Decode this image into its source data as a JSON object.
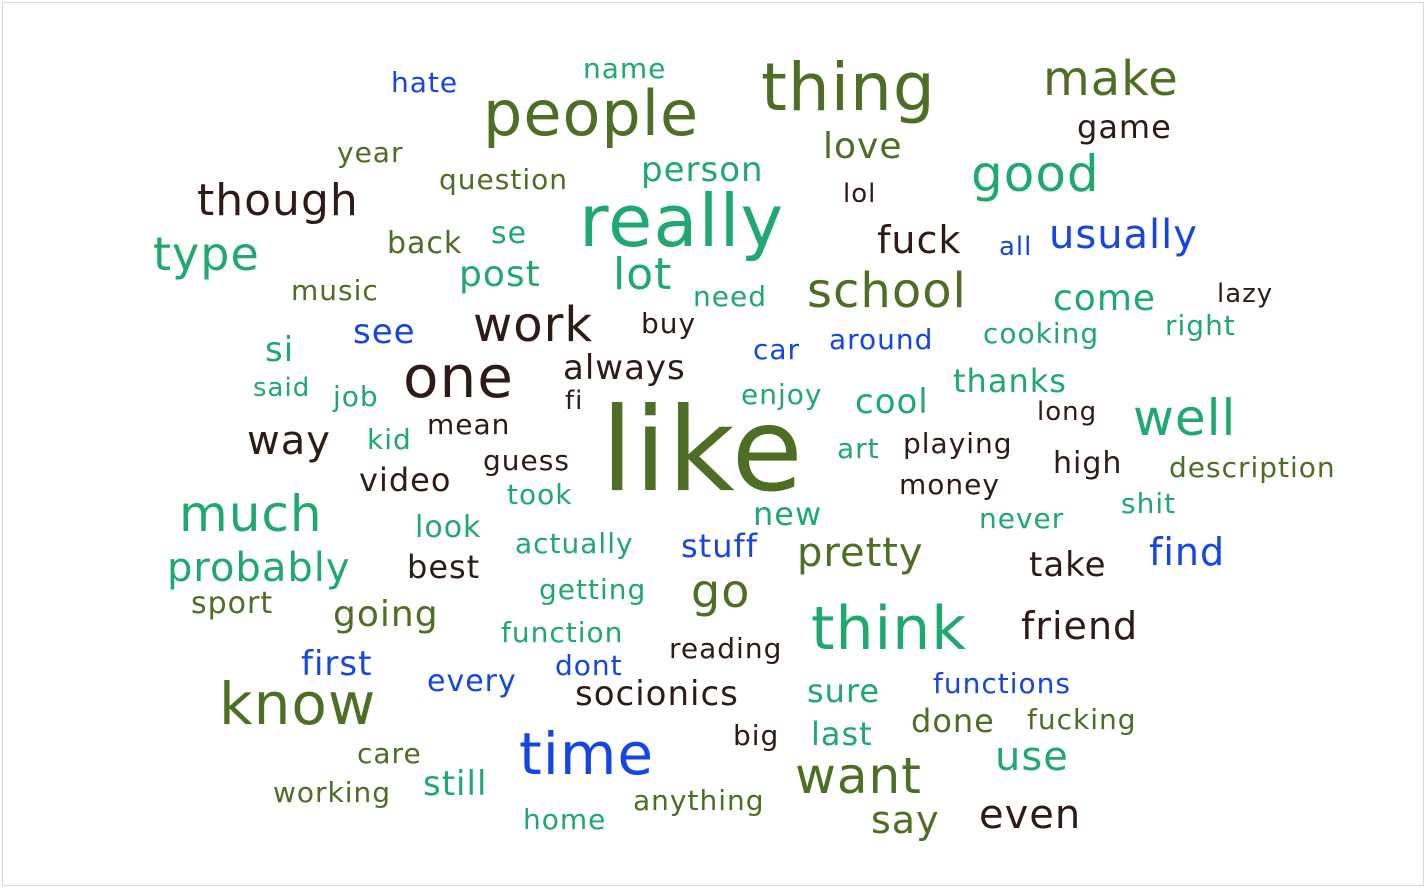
{
  "colors": {
    "olive": "#4d6e24",
    "green": "#1fa870",
    "blue": "#1545e6",
    "dark": "#2e1a17"
  },
  "words": [
    {
      "text": "like",
      "color": "olive"
    },
    {
      "text": "really",
      "color": "green"
    },
    {
      "text": "people",
      "color": "olive"
    },
    {
      "text": "thing",
      "color": "olive"
    },
    {
      "text": "think",
      "color": "green"
    },
    {
      "text": "one",
      "color": "dark"
    },
    {
      "text": "know",
      "color": "olive"
    },
    {
      "text": "time",
      "color": "blue"
    },
    {
      "text": "want",
      "color": "olive"
    },
    {
      "text": "make",
      "color": "olive"
    },
    {
      "text": "school",
      "color": "olive"
    },
    {
      "text": "good",
      "color": "green"
    },
    {
      "text": "work",
      "color": "dark"
    },
    {
      "text": "much",
      "color": "green"
    },
    {
      "text": "well",
      "color": "green"
    },
    {
      "text": "though",
      "color": "dark"
    },
    {
      "text": "type",
      "color": "green"
    },
    {
      "text": "go",
      "color": "olive"
    },
    {
      "text": "lot",
      "color": "green"
    },
    {
      "text": "way",
      "color": "dark"
    },
    {
      "text": "pretty",
      "color": "olive"
    },
    {
      "text": "probably",
      "color": "green"
    },
    {
      "text": "usually",
      "color": "blue"
    },
    {
      "text": "use",
      "color": "green"
    },
    {
      "text": "even",
      "color": "dark"
    },
    {
      "text": "friend",
      "color": "dark"
    },
    {
      "text": "fuck",
      "color": "dark"
    },
    {
      "text": "say",
      "color": "olive"
    },
    {
      "text": "socionics",
      "color": "dark"
    },
    {
      "text": "going",
      "color": "olive"
    },
    {
      "text": "find",
      "color": "blue"
    },
    {
      "text": "come",
      "color": "green"
    },
    {
      "text": "person",
      "color": "green"
    },
    {
      "text": "post",
      "color": "green"
    },
    {
      "text": "love",
      "color": "olive"
    },
    {
      "text": "always",
      "color": "dark"
    },
    {
      "text": "sure",
      "color": "green"
    },
    {
      "text": "done",
      "color": "olive"
    },
    {
      "text": "still",
      "color": "green"
    },
    {
      "text": "first",
      "color": "blue"
    },
    {
      "text": "last",
      "color": "green"
    },
    {
      "text": "video",
      "color": "dark"
    },
    {
      "text": "see",
      "color": "blue"
    },
    {
      "text": "best",
      "color": "dark"
    },
    {
      "text": "take",
      "color": "dark"
    },
    {
      "text": "game",
      "color": "dark"
    },
    {
      "text": "thanks",
      "color": "green"
    },
    {
      "text": "stuff",
      "color": "blue"
    },
    {
      "text": "new",
      "color": "green"
    },
    {
      "text": "cool",
      "color": "green"
    },
    {
      "text": "high",
      "color": "dark"
    },
    {
      "text": "si",
      "color": "green"
    },
    {
      "text": "sport",
      "color": "olive"
    },
    {
      "text": "back",
      "color": "olive"
    },
    {
      "text": "se",
      "color": "green"
    },
    {
      "text": "look",
      "color": "green"
    },
    {
      "text": "question",
      "color": "olive"
    },
    {
      "text": "year",
      "color": "olive"
    },
    {
      "text": "description",
      "color": "olive"
    },
    {
      "text": "money",
      "color": "dark"
    },
    {
      "text": "cooking",
      "color": "green"
    },
    {
      "text": "around",
      "color": "blue"
    },
    {
      "text": "functions",
      "color": "blue"
    },
    {
      "text": "fucking",
      "color": "olive"
    },
    {
      "text": "actually",
      "color": "green"
    },
    {
      "text": "every",
      "color": "blue"
    },
    {
      "text": "reading",
      "color": "dark"
    },
    {
      "text": "playing",
      "color": "dark"
    },
    {
      "text": "guess",
      "color": "dark"
    },
    {
      "text": "mean",
      "color": "dark"
    },
    {
      "text": "big",
      "color": "dark"
    },
    {
      "text": "never",
      "color": "green"
    },
    {
      "text": "function",
      "color": "green"
    },
    {
      "text": "getting",
      "color": "green"
    },
    {
      "text": "anything",
      "color": "olive"
    },
    {
      "text": "music",
      "color": "olive"
    },
    {
      "text": "need",
      "color": "green"
    },
    {
      "text": "enjoy",
      "color": "green"
    },
    {
      "text": "shit",
      "color": "green"
    },
    {
      "text": "right",
      "color": "green"
    },
    {
      "text": "working",
      "color": "olive"
    },
    {
      "text": "home",
      "color": "green"
    },
    {
      "text": "care",
      "color": "olive"
    },
    {
      "text": "hate",
      "color": "blue"
    },
    {
      "text": "name",
      "color": "green"
    },
    {
      "text": "lazy",
      "color": "dark"
    },
    {
      "text": "long",
      "color": "dark"
    },
    {
      "text": "dont",
      "color": "blue"
    },
    {
      "text": "took",
      "color": "green"
    },
    {
      "text": "art",
      "color": "green"
    },
    {
      "text": "kid",
      "color": "green"
    },
    {
      "text": "job",
      "color": "green"
    },
    {
      "text": "said",
      "color": "green"
    },
    {
      "text": "buy",
      "color": "dark"
    },
    {
      "text": "car",
      "color": "blue"
    },
    {
      "text": "lol",
      "color": "dark"
    },
    {
      "text": "all",
      "color": "blue"
    },
    {
      "text": "fi",
      "color": "dark"
    }
  ]
}
